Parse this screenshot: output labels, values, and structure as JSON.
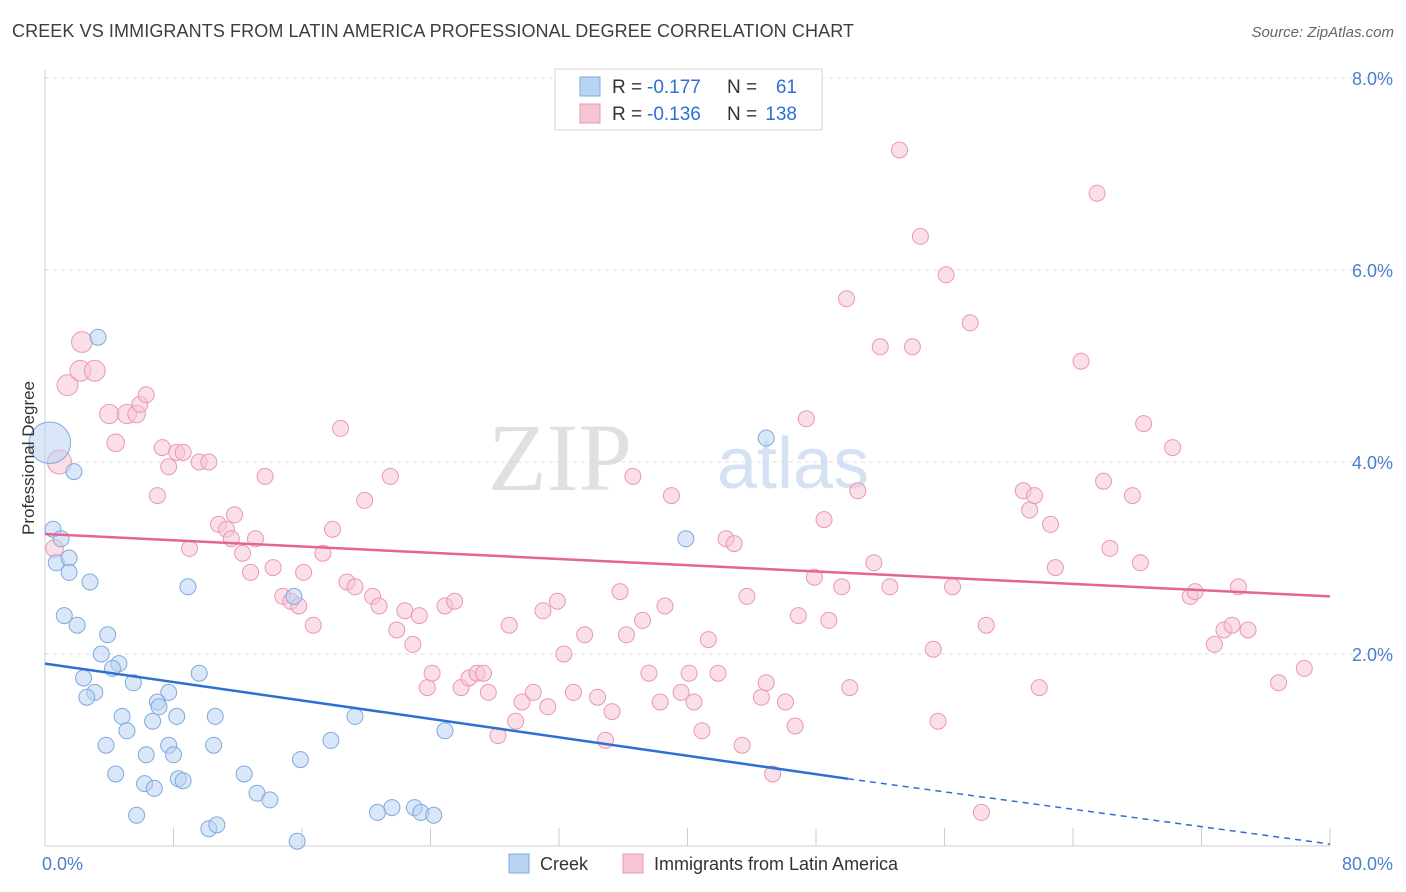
{
  "header": {
    "title": "CREEK VS IMMIGRANTS FROM LATIN AMERICA PROFESSIONAL DEGREE CORRELATION CHART",
    "source": "Source: ZipAtlas.com"
  },
  "watermark": {
    "part1": "ZIP",
    "part2": "atlas"
  },
  "colors": {
    "creek_fill": "#b9d3f2",
    "creek_stroke": "#7fa9de",
    "creek_line": "#2e6fd4",
    "latin_fill": "#f7c4d4",
    "latin_stroke": "#eb97b3",
    "latin_line": "#e36591",
    "tick_text": "#4a7fd1",
    "grid": "#dedede"
  },
  "legend": {
    "rows": [
      {
        "r_label": "R =",
        "r_value": "-0.177",
        "n_label": "N =",
        "n_value": "61"
      },
      {
        "r_label": "R =",
        "r_value": "-0.136",
        "n_label": "N =",
        "n_value": "138"
      }
    ]
  },
  "bottom_legend": {
    "creek": "Creek",
    "latin": "Immigrants from Latin America"
  },
  "chart_data": {
    "type": "scatter",
    "title": "CREEK VS IMMIGRANTS FROM LATIN AMERICA PROFESSIONAL DEGREE CORRELATION CHART",
    "xlabel": "",
    "ylabel": "Professional Degree",
    "xlim": [
      0,
      80
    ],
    "ylim": [
      0,
      8
    ],
    "x_tick_labels": {
      "min": "0.0%",
      "max": "80.0%"
    },
    "y_ticks": [
      {
        "value": 2,
        "label": "2.0%"
      },
      {
        "value": 4,
        "label": "4.0%"
      },
      {
        "value": 6,
        "label": "6.0%"
      },
      {
        "value": 8,
        "label": "8.0%"
      }
    ],
    "grid": true,
    "legend_position": "top-center",
    "series": [
      {
        "name": "Creek",
        "r": -0.177,
        "n": 61,
        "trend": {
          "x0": 0,
          "y0": 1.9,
          "x1": 50,
          "y1": 0.7,
          "dashed_to_x": 80,
          "dashed_to_y": 0.02
        },
        "points": [
          [
            0.3,
            4.2,
            2.6
          ],
          [
            3.3,
            5.3,
            1
          ],
          [
            1.8,
            3.9,
            1
          ],
          [
            0.5,
            3.3,
            1
          ],
          [
            1.0,
            3.2,
            1
          ],
          [
            0.7,
            2.95,
            1
          ],
          [
            1.5,
            3.0,
            1
          ],
          [
            1.5,
            2.85,
            1
          ],
          [
            2.8,
            2.75,
            1
          ],
          [
            1.2,
            2.4,
            1
          ],
          [
            2.0,
            2.3,
            1
          ],
          [
            3.9,
            2.2,
            1
          ],
          [
            3.5,
            2.0,
            1
          ],
          [
            4.6,
            1.9,
            1
          ],
          [
            4.2,
            1.85,
            1
          ],
          [
            2.4,
            1.75,
            1
          ],
          [
            5.5,
            1.7,
            1
          ],
          [
            3.1,
            1.6,
            1
          ],
          [
            2.6,
            1.55,
            1
          ],
          [
            7.7,
            1.6,
            1
          ],
          [
            7.0,
            1.5,
            1
          ],
          [
            9.6,
            1.8,
            1
          ],
          [
            8.9,
            2.7,
            1
          ],
          [
            4.8,
            1.35,
            1
          ],
          [
            6.7,
            1.3,
            1
          ],
          [
            8.2,
            1.35,
            1
          ],
          [
            10.6,
            1.35,
            1
          ],
          [
            7.1,
            1.45,
            1
          ],
          [
            5.1,
            1.2,
            1
          ],
          [
            3.8,
            1.05,
            1
          ],
          [
            6.3,
            0.95,
            1
          ],
          [
            7.7,
            1.05,
            1
          ],
          [
            8.0,
            0.95,
            1
          ],
          [
            10.5,
            1.05,
            1
          ],
          [
            4.4,
            0.75,
            1
          ],
          [
            6.2,
            0.65,
            1
          ],
          [
            6.8,
            0.6,
            1
          ],
          [
            8.3,
            0.7,
            1
          ],
          [
            8.6,
            0.68,
            1
          ],
          [
            12.4,
            0.75,
            1
          ],
          [
            13.2,
            0.55,
            1
          ],
          [
            14.0,
            0.48,
            1
          ],
          [
            15.9,
            0.9,
            1
          ],
          [
            17.8,
            1.1,
            1
          ],
          [
            19.3,
            1.35,
            1
          ],
          [
            15.5,
            2.6,
            1
          ],
          [
            5.7,
            0.32,
            1
          ],
          [
            10.2,
            0.18,
            1
          ],
          [
            10.7,
            0.22,
            1
          ],
          [
            20.7,
            0.35,
            1
          ],
          [
            21.6,
            0.4,
            1
          ],
          [
            23.0,
            0.4,
            1
          ],
          [
            23.4,
            0.35,
            1
          ],
          [
            24.2,
            0.32,
            1
          ],
          [
            24.9,
            1.2,
            1
          ],
          [
            39.9,
            3.2,
            1
          ],
          [
            44.9,
            4.25,
            1
          ],
          [
            15.7,
            0.05,
            1
          ]
        ]
      },
      {
        "name": "Immigrants from Latin America",
        "r": -0.136,
        "n": 138,
        "trend": {
          "x0": 0,
          "y0": 3.25,
          "x1": 80,
          "y1": 2.6
        },
        "points": [
          [
            0.9,
            4.0,
            1.5
          ],
          [
            0.6,
            3.1,
            1.1
          ],
          [
            1.4,
            4.8,
            1.3
          ],
          [
            2.2,
            4.95,
            1.3
          ],
          [
            3.1,
            4.95,
            1.3
          ],
          [
            2.3,
            5.25,
            1.3
          ],
          [
            4.0,
            4.5,
            1.2
          ],
          [
            4.4,
            4.2,
            1.1
          ],
          [
            5.1,
            4.5,
            1.2
          ],
          [
            5.7,
            4.5,
            1.1
          ],
          [
            5.9,
            4.6,
            1
          ],
          [
            6.3,
            4.7,
            1
          ],
          [
            7.0,
            3.65,
            1
          ],
          [
            7.3,
            4.15,
            1
          ],
          [
            7.7,
            3.95,
            1
          ],
          [
            8.2,
            4.1,
            1
          ],
          [
            8.6,
            4.1,
            1
          ],
          [
            9.0,
            3.1,
            1
          ],
          [
            9.6,
            4.0,
            1
          ],
          [
            10.2,
            4.0,
            1
          ],
          [
            10.8,
            3.35,
            1
          ],
          [
            11.3,
            3.3,
            1
          ],
          [
            11.8,
            3.45,
            1
          ],
          [
            11.6,
            3.2,
            1
          ],
          [
            12.3,
            3.05,
            1
          ],
          [
            12.8,
            2.85,
            1
          ],
          [
            13.1,
            3.2,
            1
          ],
          [
            13.7,
            3.85,
            1
          ],
          [
            14.2,
            2.9,
            1
          ],
          [
            14.8,
            2.6,
            1
          ],
          [
            15.3,
            2.55,
            1
          ],
          [
            15.8,
            2.5,
            1
          ],
          [
            16.1,
            2.85,
            1
          ],
          [
            16.7,
            2.3,
            1
          ],
          [
            17.3,
            3.05,
            1
          ],
          [
            17.9,
            3.3,
            1
          ],
          [
            18.4,
            4.35,
            1
          ],
          [
            18.8,
            2.75,
            1
          ],
          [
            19.3,
            2.7,
            1
          ],
          [
            19.9,
            3.6,
            1
          ],
          [
            20.4,
            2.6,
            1
          ],
          [
            20.8,
            2.5,
            1
          ],
          [
            21.5,
            3.85,
            1
          ],
          [
            21.9,
            2.25,
            1
          ],
          [
            22.4,
            2.45,
            1
          ],
          [
            22.9,
            2.1,
            1
          ],
          [
            23.3,
            2.4,
            1
          ],
          [
            23.8,
            1.65,
            1
          ],
          [
            24.1,
            1.8,
            1
          ],
          [
            24.9,
            2.5,
            1
          ],
          [
            25.5,
            2.55,
            1
          ],
          [
            25.9,
            1.65,
            1
          ],
          [
            26.4,
            1.75,
            1
          ],
          [
            26.9,
            1.8,
            1
          ],
          [
            27.3,
            1.8,
            1
          ],
          [
            27.6,
            1.6,
            1
          ],
          [
            28.2,
            1.15,
            1
          ],
          [
            28.9,
            2.3,
            1
          ],
          [
            29.3,
            1.3,
            1
          ],
          [
            29.7,
            1.5,
            1
          ],
          [
            30.4,
            1.6,
            1
          ],
          [
            31.0,
            2.45,
            1
          ],
          [
            31.3,
            1.45,
            1
          ],
          [
            31.9,
            2.55,
            1
          ],
          [
            32.3,
            2.0,
            1
          ],
          [
            32.9,
            1.6,
            1
          ],
          [
            33.6,
            2.2,
            1
          ],
          [
            34.4,
            1.55,
            1
          ],
          [
            34.9,
            1.1,
            1
          ],
          [
            35.3,
            1.4,
            1
          ],
          [
            35.8,
            2.65,
            1
          ],
          [
            36.2,
            2.2,
            1
          ],
          [
            36.6,
            3.85,
            1
          ],
          [
            37.2,
            2.35,
            1
          ],
          [
            37.6,
            1.8,
            1
          ],
          [
            38.3,
            1.5,
            1
          ],
          [
            38.6,
            2.5,
            1
          ],
          [
            39.0,
            3.65,
            1
          ],
          [
            39.6,
            1.6,
            1
          ],
          [
            40.1,
            1.8,
            1
          ],
          [
            40.4,
            1.5,
            1
          ],
          [
            40.9,
            1.2,
            1
          ],
          [
            41.3,
            2.15,
            1
          ],
          [
            41.9,
            1.8,
            1
          ],
          [
            42.4,
            3.2,
            1
          ],
          [
            42.9,
            3.15,
            1
          ],
          [
            43.4,
            1.05,
            1
          ],
          [
            43.7,
            2.6,
            1
          ],
          [
            44.6,
            1.55,
            1
          ],
          [
            44.9,
            1.7,
            1
          ],
          [
            45.3,
            0.75,
            1
          ],
          [
            46.1,
            1.5,
            1
          ],
          [
            46.7,
            1.25,
            1
          ],
          [
            46.9,
            2.4,
            1
          ],
          [
            47.4,
            4.45,
            1
          ],
          [
            47.9,
            2.8,
            1
          ],
          [
            48.5,
            3.4,
            1
          ],
          [
            48.8,
            2.35,
            1
          ],
          [
            49.6,
            2.7,
            1
          ],
          [
            49.9,
            5.7,
            1
          ],
          [
            50.1,
            1.65,
            1
          ],
          [
            50.6,
            3.7,
            1
          ],
          [
            51.6,
            2.95,
            1
          ],
          [
            52.0,
            5.2,
            1
          ],
          [
            52.6,
            2.7,
            1
          ],
          [
            53.2,
            7.25,
            1
          ],
          [
            54.0,
            5.2,
            1
          ],
          [
            54.5,
            6.35,
            1
          ],
          [
            55.3,
            2.05,
            1
          ],
          [
            55.6,
            1.3,
            1
          ],
          [
            56.1,
            5.95,
            1
          ],
          [
            56.5,
            2.7,
            1
          ],
          [
            57.6,
            5.45,
            1
          ],
          [
            58.3,
            0.35,
            1
          ],
          [
            58.6,
            2.3,
            1
          ],
          [
            60.9,
            3.7,
            1
          ],
          [
            61.3,
            3.5,
            1
          ],
          [
            61.6,
            3.65,
            1
          ],
          [
            61.9,
            1.65,
            1
          ],
          [
            62.6,
            3.35,
            1
          ],
          [
            62.9,
            2.9,
            1
          ],
          [
            64.5,
            5.05,
            1
          ],
          [
            65.5,
            6.8,
            1
          ],
          [
            65.9,
            3.8,
            1
          ],
          [
            66.3,
            3.1,
            1
          ],
          [
            67.7,
            3.65,
            1
          ],
          [
            68.2,
            2.95,
            1
          ],
          [
            68.4,
            4.4,
            1
          ],
          [
            70.2,
            4.15,
            1
          ],
          [
            71.3,
            2.6,
            1
          ],
          [
            71.6,
            2.65,
            1
          ],
          [
            72.8,
            2.1,
            1
          ],
          [
            73.4,
            2.25,
            1
          ],
          [
            73.9,
            2.3,
            1
          ],
          [
            74.3,
            2.7,
            1
          ],
          [
            74.9,
            2.25,
            1
          ],
          [
            76.8,
            1.7,
            1
          ],
          [
            78.4,
            1.85,
            1
          ]
        ]
      }
    ]
  }
}
